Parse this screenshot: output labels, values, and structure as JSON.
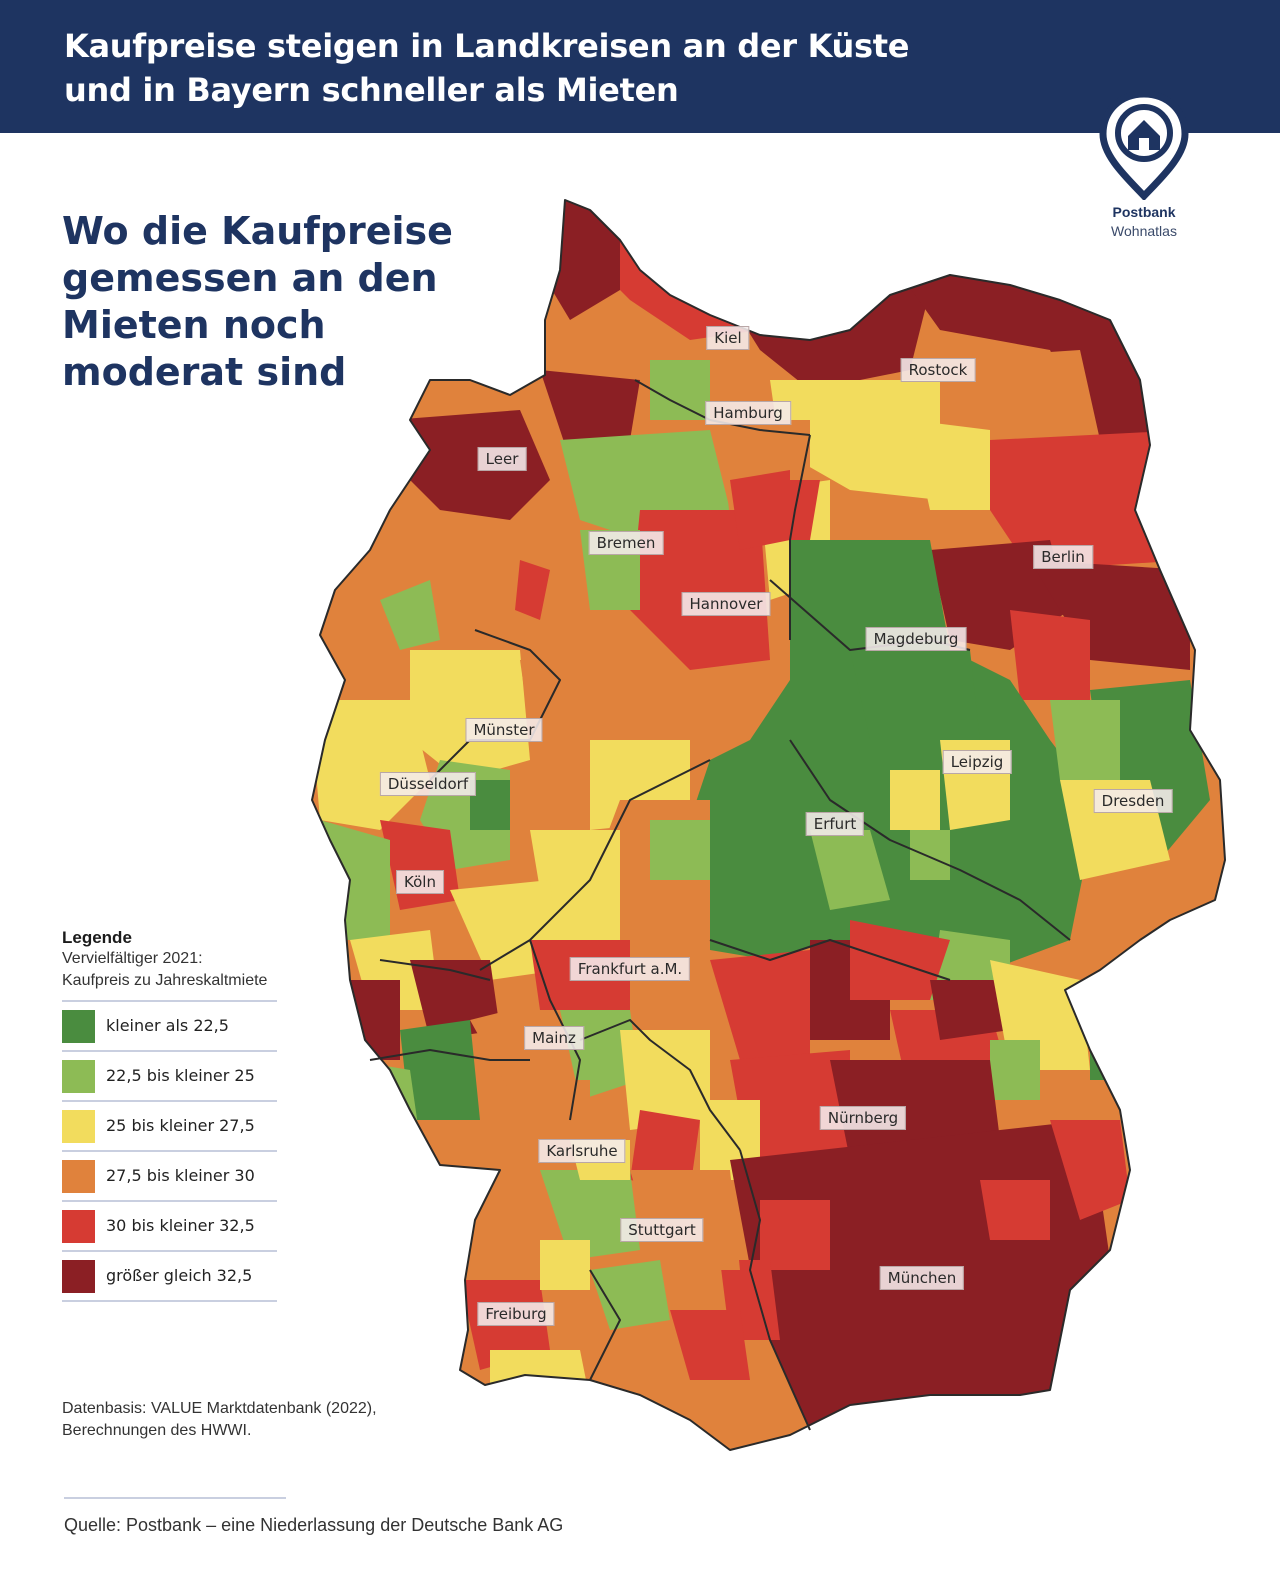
{
  "header": {
    "title_line1": "Kaufpreise steigen in Landkreisen an der Küste",
    "title_line2": "und in Bayern schneller als Mieten",
    "background": "#1e3461"
  },
  "logo": {
    "icon": "house-pin-icon",
    "brand": "Postbank",
    "product": "Wohnatlas"
  },
  "map_title": {
    "line1": "Wo die Kaufpreise",
    "line2": "gemessen an den",
    "line3": "Mieten noch",
    "line4": "moderat sind"
  },
  "legend": {
    "title": "Legende",
    "subtitle_line1": "Vervielfältiger 2021:",
    "subtitle_line2": "Kaufpreis zu Jahreskaltmiete",
    "items": [
      {
        "label": "kleiner als 22,5",
        "color": "#4a8c3f"
      },
      {
        "label": "22,5 bis kleiner 25",
        "color": "#8dbb55"
      },
      {
        "label": "25 bis kleiner 27,5",
        "color": "#f2dc5d"
      },
      {
        "label": "27,5 bis kleiner 30",
        "color": "#e0823c"
      },
      {
        "label": "30 bis kleiner 32,5",
        "color": "#d63b33"
      },
      {
        "label": "größer gleich 32,5",
        "color": "#8b1f24"
      }
    ]
  },
  "cities": [
    {
      "name": "Kiel"
    },
    {
      "name": "Rostock"
    },
    {
      "name": "Hamburg"
    },
    {
      "name": "Leer"
    },
    {
      "name": "Bremen"
    },
    {
      "name": "Berlin"
    },
    {
      "name": "Hannover"
    },
    {
      "name": "Magdeburg"
    },
    {
      "name": "Münster"
    },
    {
      "name": "Leipzig"
    },
    {
      "name": "Düsseldorf"
    },
    {
      "name": "Dresden"
    },
    {
      "name": "Erfurt"
    },
    {
      "name": "Köln"
    },
    {
      "name": "Frankfurt a.M."
    },
    {
      "name": "Mainz"
    },
    {
      "name": "Nürnberg"
    },
    {
      "name": "Karlsruhe"
    },
    {
      "name": "Stuttgart"
    },
    {
      "name": "München"
    },
    {
      "name": "Freiburg"
    }
  ],
  "source_note": {
    "line1": "Datenbasis: VALUE Marktdatenbank (2022),",
    "line2": "Berechnungen des HWWI."
  },
  "footer": {
    "source": "Quelle: Postbank – eine Niederlassung der Deutsche Bank AG"
  }
}
